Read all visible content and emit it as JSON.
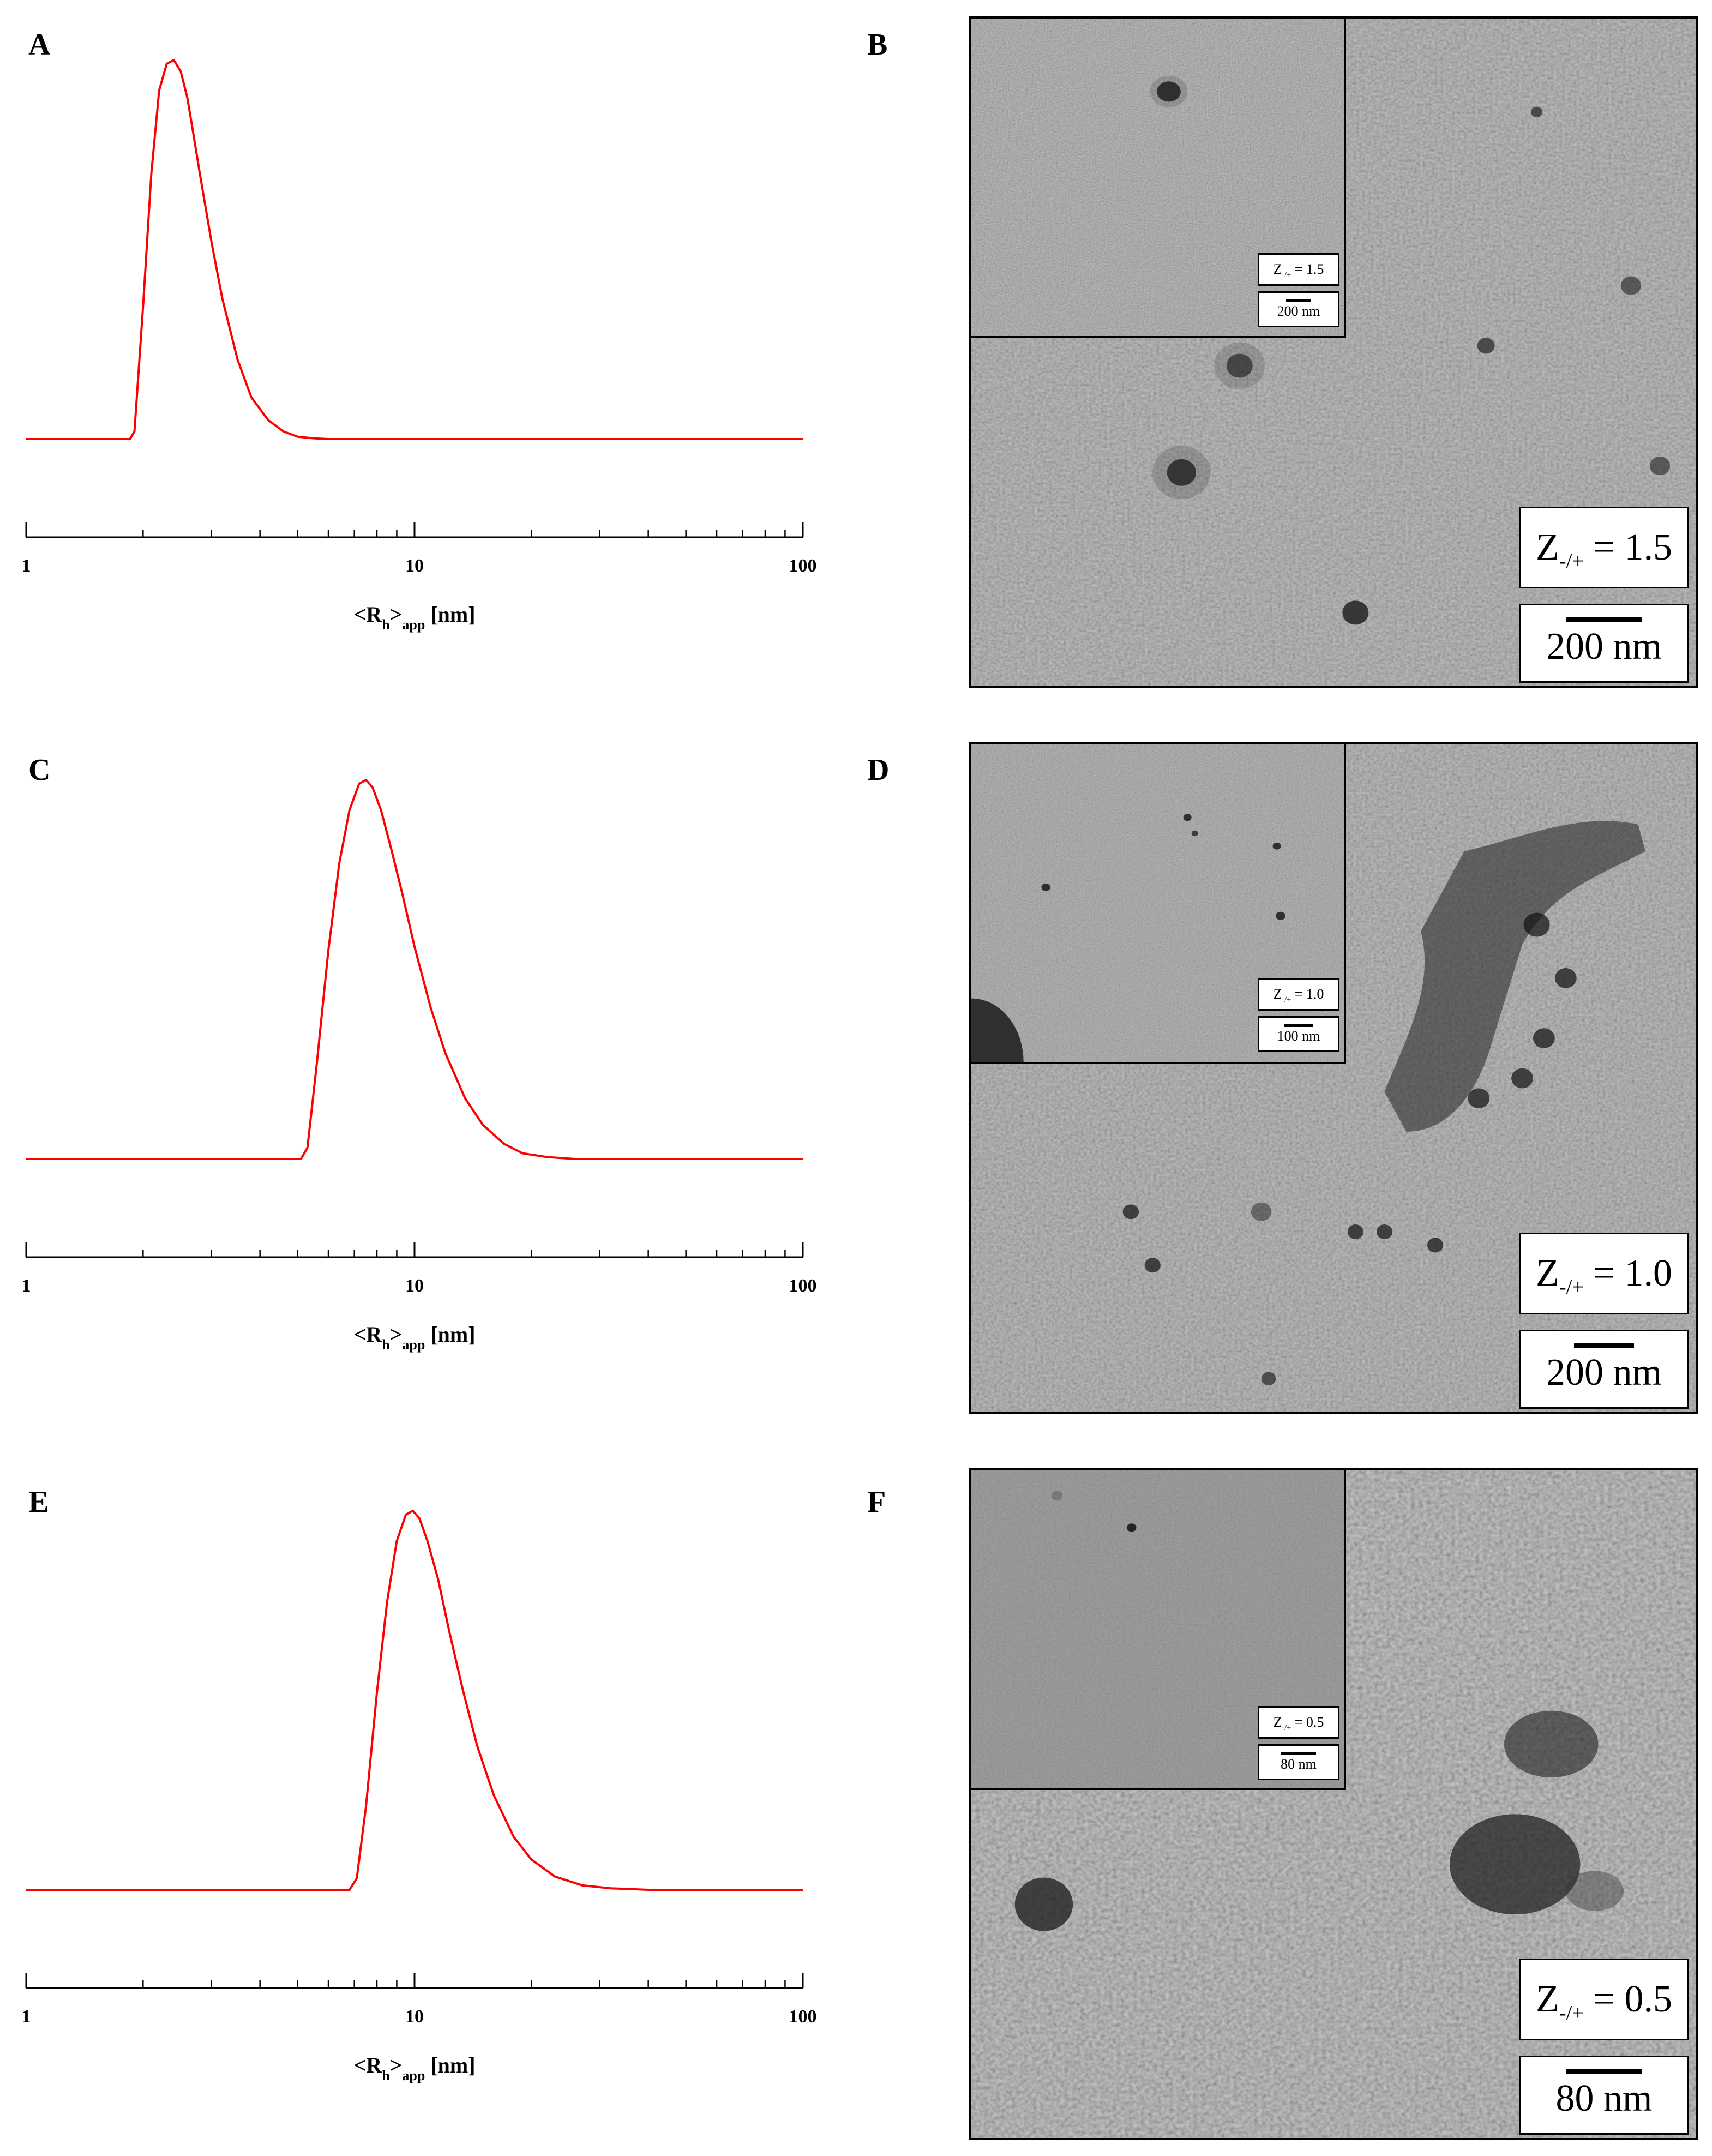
{
  "panels": [
    {
      "letter": "A"
    },
    {
      "letter": "B"
    },
    {
      "letter": "C"
    },
    {
      "letter": "D"
    },
    {
      "letter": "E"
    },
    {
      "letter": "F"
    }
  ],
  "chart_data": [
    {
      "type": "line",
      "panel": "A",
      "xscale": "log",
      "xlim": [
        1,
        100
      ],
      "xticks": [
        1,
        10,
        100
      ],
      "xtick_labels": [
        "1",
        "10",
        "100"
      ],
      "xlabel": {
        "pre": "<R",
        "sub1": "h",
        "mid": ">",
        "sub2": "app",
        "post": " [nm]"
      },
      "ylabel": "",
      "title": "",
      "color": "#ff0000",
      "grid": false,
      "series": [
        {
          "x": [
            1,
            1.6,
            1.85,
            1.9,
            2.0,
            2.1,
            2.2,
            2.3,
            2.4,
            2.5,
            2.6,
            2.7,
            2.8,
            3.0,
            3.2,
            3.5,
            3.8,
            4.2,
            4.6,
            5.0,
            5.5,
            6,
            10,
            20,
            50,
            100
          ],
          "y": [
            0,
            0,
            0,
            0.02,
            0.35,
            0.7,
            0.92,
            0.99,
            1.0,
            0.97,
            0.9,
            0.8,
            0.7,
            0.52,
            0.37,
            0.21,
            0.11,
            0.05,
            0.02,
            0.006,
            0.002,
            0,
            0,
            0,
            0,
            0
          ]
        }
      ]
    },
    {
      "type": "line",
      "panel": "C",
      "xscale": "log",
      "xlim": [
        1,
        100
      ],
      "xticks": [
        1,
        10,
        100
      ],
      "xtick_labels": [
        "1",
        "10",
        "100"
      ],
      "xlabel": {
        "pre": "<R",
        "sub1": "h",
        "mid": ">",
        "sub2": "app",
        "post": " [nm]"
      },
      "ylabel": "",
      "title": "",
      "color": "#ff0000",
      "grid": false,
      "series": [
        {
          "x": [
            1,
            4,
            5.1,
            5.3,
            5.6,
            6.0,
            6.4,
            6.8,
            7.2,
            7.5,
            7.8,
            8.2,
            8.7,
            9.3,
            10,
            11,
            12,
            13.5,
            15,
            17,
            19,
            22,
            26,
            35,
            60,
            100
          ],
          "y": [
            0,
            0,
            0,
            0.03,
            0.25,
            0.55,
            0.78,
            0.92,
            0.99,
            1.0,
            0.98,
            0.92,
            0.82,
            0.7,
            0.56,
            0.4,
            0.28,
            0.16,
            0.09,
            0.04,
            0.015,
            0.005,
            0,
            0,
            0,
            0
          ]
        }
      ]
    },
    {
      "type": "line",
      "panel": "E",
      "xscale": "log",
      "xlim": [
        1,
        100
      ],
      "xticks": [
        1,
        10,
        100
      ],
      "xtick_labels": [
        "1",
        "10",
        "100"
      ],
      "xlabel": {
        "pre": "<R",
        "sub1": "h",
        "mid": ">",
        "sub2": "app",
        "post": " [nm]"
      },
      "ylabel": "",
      "title": "",
      "color": "#ff0000",
      "grid": false,
      "series": [
        {
          "x": [
            1,
            5,
            6.8,
            7.1,
            7.5,
            8.0,
            8.5,
            9.0,
            9.5,
            9.9,
            10.3,
            10.8,
            11.5,
            12.3,
            13.3,
            14.5,
            16,
            18,
            20,
            23,
            27,
            32,
            40,
            60,
            100
          ],
          "y": [
            0,
            0,
            0,
            0.03,
            0.22,
            0.52,
            0.76,
            0.92,
            0.99,
            1.0,
            0.98,
            0.92,
            0.82,
            0.68,
            0.53,
            0.38,
            0.25,
            0.14,
            0.08,
            0.035,
            0.012,
            0.004,
            0,
            0,
            0
          ]
        }
      ]
    }
  ],
  "tem_images": [
    {
      "panel": "B",
      "inset_label": "Z-/+ = 1.5",
      "inset_scale": "200 nm",
      "main_label_pre": "Z",
      "main_label_sub": "-/+",
      "main_label_post": " = 1.5",
      "main_scale": "200 nm",
      "inset_label_pre": "Z",
      "inset_label_sub": "-/+",
      "inset_label_post": " = 1.5"
    },
    {
      "panel": "D",
      "inset_label": "Z-/+ = 1.0",
      "inset_scale": "100 nm",
      "main_label_pre": "Z",
      "main_label_sub": "-/+",
      "main_label_post": " = 1.0",
      "main_scale": "200 nm",
      "inset_label_pre": "Z",
      "inset_label_sub": "-/+",
      "inset_label_post": " = 1.0"
    },
    {
      "panel": "F",
      "inset_label": "Z-/+ = 0.5",
      "inset_scale": "80 nm",
      "main_label_pre": "Z",
      "main_label_sub": "-/+",
      "main_label_post": " = 0.5",
      "main_scale": "80 nm",
      "inset_label_pre": "Z",
      "inset_label_sub": "-/+",
      "inset_label_post": " = 0.5"
    }
  ]
}
